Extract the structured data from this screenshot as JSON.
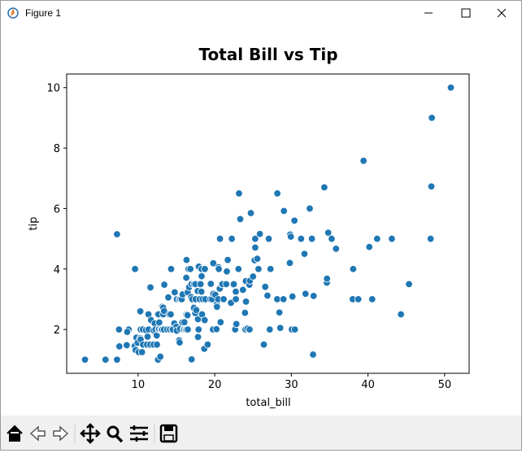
{
  "window": {
    "title": "Figure 1"
  },
  "chart_data": {
    "type": "scatter",
    "title": "Total Bill vs Tip",
    "x_label": "total_bill",
    "y_label": "tip",
    "color": "#1f77b4",
    "title_color": "#0000ff",
    "x": [
      3.07,
      5.75,
      7.25,
      7.25,
      7.51,
      7.56,
      8.52,
      8.77,
      8.58,
      9.55,
      9.6,
      9.68,
      9.78,
      9.94,
      10.07,
      10.27,
      10.29,
      10.33,
      10.34,
      10.51,
      10.63,
      10.65,
      11.02,
      11.17,
      11.24,
      11.35,
      11.38,
      11.59,
      11.61,
      11.69,
      12.02,
      12.03,
      12.16,
      12.26,
      12.43,
      12.46,
      12.54,
      12.6,
      12.66,
      12.69,
      12.74,
      12.76,
      12.9,
      13.0,
      13.03,
      13.13,
      13.16,
      13.27,
      13.28,
      13.37,
      13.39,
      13.42,
      13.81,
      13.94,
      14.07,
      14.15,
      14.26,
      14.31,
      14.48,
      14.52,
      14.73,
      14.78,
      15.01,
      15.04,
      15.06,
      15.36,
      15.38,
      15.42,
      15.48,
      15.53,
      15.69,
      15.77,
      15.81,
      15.95,
      15.98,
      16.0,
      16.04,
      16.21,
      16.27,
      16.29,
      16.31,
      16.32,
      16.4,
      16.45,
      16.47,
      16.49,
      16.58,
      16.66,
      16.82,
      16.93,
      16.97,
      16.99,
      17.07,
      17.26,
      17.29,
      17.31,
      17.46,
      17.47,
      17.51,
      17.59,
      17.78,
      17.81,
      17.82,
      17.89,
      17.92,
      18.04,
      18.15,
      18.24,
      18.26,
      18.28,
      18.29,
      18.35,
      18.43,
      18.64,
      18.69,
      18.71,
      18.78,
      19.08,
      19.44,
      19.49,
      19.65,
      19.77,
      19.81,
      19.82,
      20.08,
      20.23,
      20.27,
      20.29,
      20.45,
      20.49,
      20.53,
      20.65,
      20.69,
      20.76,
      20.9,
      21.01,
      21.16,
      21.5,
      21.58,
      21.7,
      22.12,
      22.23,
      22.42,
      22.49,
      22.67,
      22.75,
      22.76,
      22.82,
      23.1,
      23.17,
      23.33,
      23.68,
      23.95,
      24.01,
      24.06,
      24.08,
      24.27,
      24.52,
      24.55,
      24.59,
      24.71,
      25.0,
      25.21,
      25.28,
      25.29,
      25.56,
      25.71,
      25.89,
      26.41,
      26.59,
      26.86,
      26.88,
      27.05,
      27.18,
      27.2,
      27.28,
      28.15,
      28.17,
      28.44,
      28.55,
      28.97,
      29.03,
      29.8,
      29.85,
      29.93,
      30.06,
      30.14,
      30.4,
      30.46,
      31.27,
      31.71,
      31.85,
      32.4,
      32.68,
      32.83,
      32.9,
      34.3,
      34.63,
      34.65,
      34.81,
      35.26,
      35.83,
      38.01,
      38.07,
      38.73,
      39.42,
      40.17,
      40.55,
      41.19,
      43.11,
      44.3,
      45.35,
      48.17,
      48.27,
      48.33,
      50.81
    ],
    "values": [
      1.0,
      1.0,
      1.0,
      5.15,
      2.0,
      1.44,
      1.48,
      2.0,
      1.92,
      1.45,
      4.0,
      1.32,
      1.73,
      1.56,
      1.25,
      1.71,
      2.6,
      1.67,
      2.0,
      1.25,
      2.0,
      1.5,
      1.98,
      1.5,
      1.76,
      2.5,
      2.0,
      1.5,
      3.39,
      2.31,
      1.97,
      1.5,
      2.2,
      2.0,
      1.8,
      1.5,
      2.5,
      1.0,
      2.5,
      2.0,
      2.01,
      2.23,
      1.1,
      2.0,
      2.0,
      2.0,
      2.75,
      2.5,
      2.72,
      2.0,
      2.61,
      3.48,
      2.0,
      3.06,
      2.5,
      2.0,
      2.5,
      4.0,
      2.0,
      2.0,
      2.2,
      3.23,
      2.09,
      1.96,
      3.0,
      1.64,
      3.0,
      1.57,
      2.02,
      3.0,
      3.0,
      2.23,
      3.16,
      2.0,
      2.03,
      2.0,
      2.24,
      2.0,
      2.5,
      3.71,
      2.0,
      4.3,
      2.5,
      2.47,
      3.23,
      2.0,
      4.0,
      3.4,
      4.0,
      3.07,
      3.5,
      1.01,
      3.0,
      2.74,
      2.71,
      3.5,
      2.54,
      3.5,
      3.0,
      2.64,
      3.27,
      2.34,
      1.75,
      2.0,
      4.08,
      3.0,
      3.5,
      3.76,
      3.25,
      4.0,
      3.76,
      2.5,
      3.0,
      1.36,
      2.31,
      4.0,
      3.0,
      1.5,
      3.0,
      3.51,
      3.0,
      2.0,
      4.19,
      3.18,
      3.15,
      2.01,
      2.83,
      2.75,
      3.0,
      4.06,
      4.0,
      3.35,
      5.0,
      2.24,
      3.5,
      3.5,
      3.0,
      3.5,
      3.92,
      4.3,
      2.88,
      5.0,
      3.48,
      3.5,
      2.0,
      3.25,
      3.0,
      2.18,
      4.0,
      6.5,
      5.65,
      3.31,
      2.55,
      2.0,
      3.6,
      2.92,
      2.03,
      3.48,
      2.0,
      3.61,
      5.85,
      3.75,
      4.29,
      5.0,
      4.71,
      4.34,
      4.0,
      5.16,
      1.5,
      3.41,
      3.14,
      3.12,
      5.0,
      2.0,
      4.0,
      4.0,
      3.0,
      6.5,
      2.56,
      2.05,
      3.0,
      5.92,
      4.2,
      5.14,
      5.07,
      2.0,
      3.09,
      5.6,
      2.0,
      5.0,
      4.5,
      3.18,
      6.0,
      5.0,
      1.17,
      3.11,
      6.7,
      3.55,
      3.68,
      5.2,
      5.0,
      4.67,
      3.0,
      4.0,
      3.0,
      7.58,
      4.73,
      3.0,
      5.0,
      5.0,
      2.5,
      3.5,
      5.0,
      6.73,
      9.0,
      10.0
    ],
    "xlim": [
      0.68,
      53.2
    ],
    "ylim": [
      0.55,
      10.45
    ],
    "xticks": [
      10,
      20,
      30,
      40,
      50
    ],
    "yticks": [
      2,
      4,
      6,
      8,
      10
    ],
    "grid": false
  }
}
